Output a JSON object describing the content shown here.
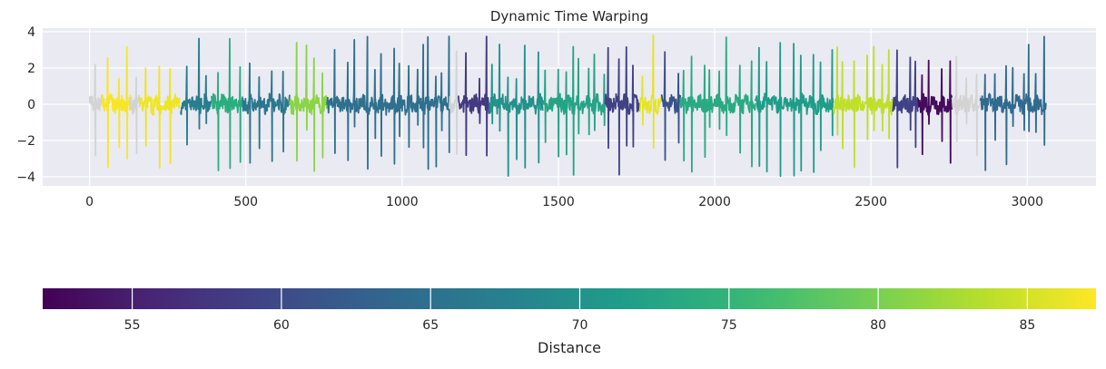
{
  "chart_data": {
    "type": "line",
    "title": "Dynamic Time Warping",
    "xlabel": "",
    "ylabel": "",
    "xlim": [
      -150,
      3220
    ],
    "ylim": [
      -4.5,
      4.2
    ],
    "xticks": [
      0,
      500,
      1000,
      1500,
      2000,
      2500,
      3000
    ],
    "yticks": [
      -4,
      -2,
      0,
      2,
      4
    ],
    "grid": true,
    "background": "#eaeaf2",
    "segments": [
      {
        "x_start": 0,
        "x_end": 40,
        "distance": null
      },
      {
        "x_start": 40,
        "x_end": 130,
        "distance": 87.0
      },
      {
        "x_start": 130,
        "x_end": 160,
        "distance": null
      },
      {
        "x_start": 160,
        "x_end": 290,
        "distance": 86.5
      },
      {
        "x_start": 290,
        "x_end": 390,
        "distance": 67.0
      },
      {
        "x_start": 390,
        "x_end": 490,
        "distance": 74.0
      },
      {
        "x_start": 490,
        "x_end": 640,
        "distance": 66.0
      },
      {
        "x_start": 640,
        "x_end": 760,
        "distance": 81.0
      },
      {
        "x_start": 760,
        "x_end": 1150,
        "distance": 65.0
      },
      {
        "x_start": 1150,
        "x_end": 1180,
        "distance": null
      },
      {
        "x_start": 1180,
        "x_end": 1280,
        "distance": 58.0
      },
      {
        "x_start": 1280,
        "x_end": 1450,
        "distance": 70.0
      },
      {
        "x_start": 1450,
        "x_end": 1650,
        "distance": 72.5
      },
      {
        "x_start": 1650,
        "x_end": 1760,
        "distance": 59.0
      },
      {
        "x_start": 1760,
        "x_end": 1830,
        "distance": 86.0
      },
      {
        "x_start": 1830,
        "x_end": 1890,
        "distance": 61.0
      },
      {
        "x_start": 1890,
        "x_end": 2130,
        "distance": 73.5
      },
      {
        "x_start": 2130,
        "x_end": 2380,
        "distance": 71.5
      },
      {
        "x_start": 2380,
        "x_end": 2570,
        "distance": 84.0
      },
      {
        "x_start": 2570,
        "x_end": 2650,
        "distance": 59.0
      },
      {
        "x_start": 2650,
        "x_end": 2760,
        "distance": 53.0
      },
      {
        "x_start": 2760,
        "x_end": 2850,
        "distance": null
      },
      {
        "x_start": 2850,
        "x_end": 3060,
        "distance": 64.0
      }
    ],
    "colorbar": {
      "label": "Distance",
      "min": 52,
      "max": 87.3,
      "ticks": [
        55,
        60,
        65,
        70,
        75,
        80,
        85
      ],
      "colormap": "viridis",
      "missing_color": "#d3d3d3"
    }
  }
}
